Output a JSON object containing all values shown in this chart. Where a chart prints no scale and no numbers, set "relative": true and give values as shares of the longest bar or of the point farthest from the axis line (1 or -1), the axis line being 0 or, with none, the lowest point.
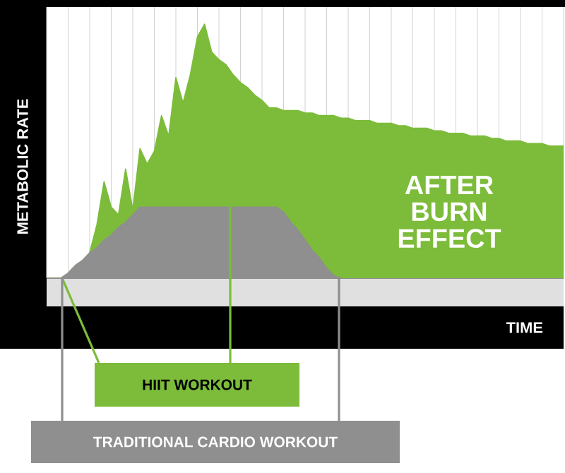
{
  "chart_data": {
    "type": "area",
    "relative": true,
    "xlabel": "TIME",
    "ylabel": "METABOLIC RATE",
    "annotations": [
      "AFTER BURN EFFECT"
    ],
    "grid": "x",
    "categories": [
      null,
      null,
      null,
      null,
      null,
      null,
      null,
      null,
      null,
      null,
      null,
      null,
      null,
      null,
      null,
      null,
      null,
      null,
      null,
      null,
      null,
      null,
      null,
      null,
      null,
      null,
      null,
      null,
      null,
      null,
      null,
      null,
      null,
      null,
      null,
      null,
      null,
      null,
      null,
      null,
      null,
      null,
      null,
      null,
      null,
      null,
      null,
      null,
      null,
      null,
      null,
      null,
      null,
      null,
      null,
      null,
      null,
      null,
      null,
      null,
      null,
      null,
      null,
      null,
      null,
      null,
      null,
      null,
      null,
      null,
      null,
      null,
      null
    ],
    "series": [
      {
        "name": "HIIT WORKOUT",
        "color": "#7cbc3a",
        "values": [
          0,
          0,
          0,
          0.02,
          0.05,
          0.07,
          0.1,
          0.21,
          0.38,
          0.28,
          0.25,
          0.43,
          0.27,
          0.51,
          0.45,
          0.5,
          0.64,
          0.56,
          0.79,
          0.69,
          0.8,
          0.95,
          1.0,
          0.89,
          0.86,
          0.84,
          0.8,
          0.77,
          0.75,
          0.72,
          0.7,
          0.67,
          0.67,
          0.66,
          0.66,
          0.66,
          0.65,
          0.65,
          0.64,
          0.64,
          0.64,
          0.63,
          0.63,
          0.62,
          0.62,
          0.62,
          0.61,
          0.61,
          0.61,
          0.6,
          0.6,
          0.59,
          0.59,
          0.59,
          0.58,
          0.58,
          0.57,
          0.57,
          0.57,
          0.56,
          0.56,
          0.56,
          0.55,
          0.55,
          0.54,
          0.54,
          0.54,
          0.53,
          0.53,
          0.53,
          0.52,
          0.52,
          0.52
        ]
      },
      {
        "name": "TRADITIONAL CARDIO WORKOUT",
        "color": "#8f8f8f",
        "values": [
          0,
          0,
          0,
          0.02,
          0.05,
          0.07,
          0.1,
          0.12,
          0.15,
          0.17,
          0.2,
          0.22,
          0.25,
          0.28,
          0.28,
          0.28,
          0.28,
          0.28,
          0.28,
          0.28,
          0.28,
          0.28,
          0.28,
          0.28,
          0.28,
          0.28,
          0.28,
          0.28,
          0.28,
          0.28,
          0.28,
          0.28,
          0.28,
          0.26,
          0.22,
          0.19,
          0.15,
          0.11,
          0.08,
          0.04,
          0.01,
          0,
          null,
          null,
          null,
          null,
          null,
          null,
          null,
          null,
          null,
          null,
          null,
          null,
          null,
          null,
          null,
          null,
          null,
          null,
          null,
          null,
          null,
          null,
          null,
          null,
          null,
          null,
          null,
          null,
          null,
          null,
          null
        ]
      }
    ]
  }
}
